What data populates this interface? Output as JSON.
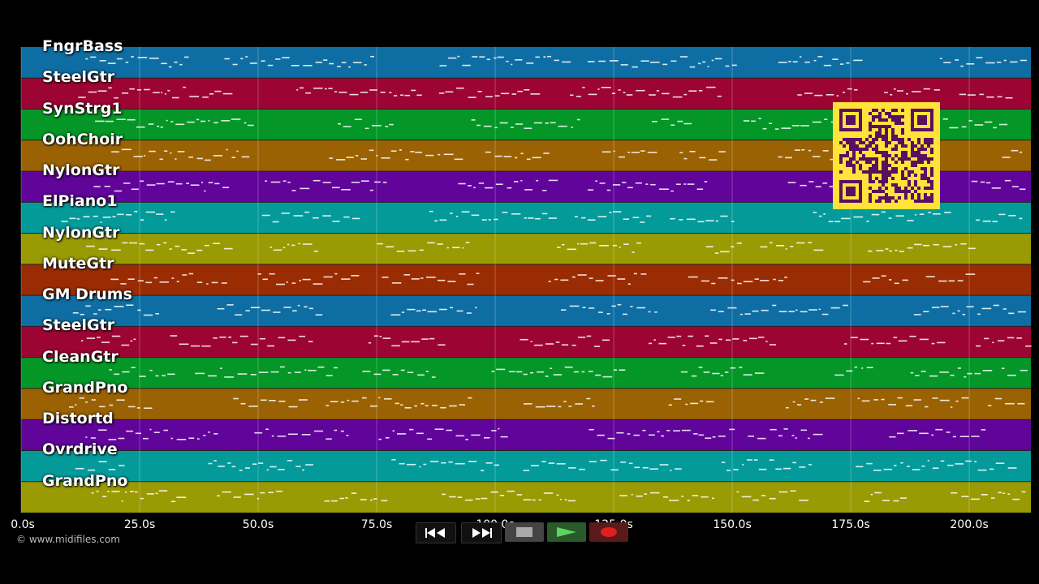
{
  "app": {
    "copyright": "© www.midifiles.com"
  },
  "tracks": [
    {
      "name": "FngrBass",
      "color": "#0e6ea3"
    },
    {
      "name": "SteelGtr",
      "color": "#9c0533"
    },
    {
      "name": "SynStrg1",
      "color": "#049627"
    },
    {
      "name": "OohChoir",
      "color": "#9a6203"
    },
    {
      "name": "NylonGtr",
      "color": "#60049a"
    },
    {
      "name": "ElPiano1",
      "color": "#049a9a"
    },
    {
      "name": "NylonGtr",
      "color": "#9a9a04"
    },
    {
      "name": "MuteGtr",
      "color": "#9a2c04"
    },
    {
      "name": "GM Drums",
      "color": "#0e6ea3"
    },
    {
      "name": "SteelGtr",
      "color": "#9c0533"
    },
    {
      "name": "CleanGtr",
      "color": "#049627"
    },
    {
      "name": "GrandPno",
      "color": "#9a6203"
    },
    {
      "name": "Distortd",
      "color": "#60049a"
    },
    {
      "name": "Ovrdrive",
      "color": "#049a9a"
    },
    {
      "name": "GrandPno",
      "color": "#9a9a04"
    }
  ],
  "timeline": {
    "tick_labels": [
      "0.0s",
      "25.0s",
      "50.0s",
      "75.0s",
      "100.0s",
      "125.0s",
      "150.0s",
      "175.0s",
      "200.0s"
    ],
    "tick_values": [
      0,
      25,
      50,
      75,
      100,
      125,
      150,
      175,
      200
    ],
    "max_seconds": 213
  },
  "transport": {
    "buttons": [
      {
        "name": "rewind-button",
        "icon": "rewind-icon"
      },
      {
        "name": "fast-forward-button",
        "icon": "fast-forward-icon"
      },
      {
        "name": "stop-button",
        "icon": "stop-icon"
      },
      {
        "name": "play-button",
        "icon": "play-icon"
      },
      {
        "name": "record-button",
        "icon": "record-icon"
      }
    ]
  },
  "overlay": {
    "qr_icon": "qr-code-icon",
    "qr_color": "#ffe23a"
  }
}
